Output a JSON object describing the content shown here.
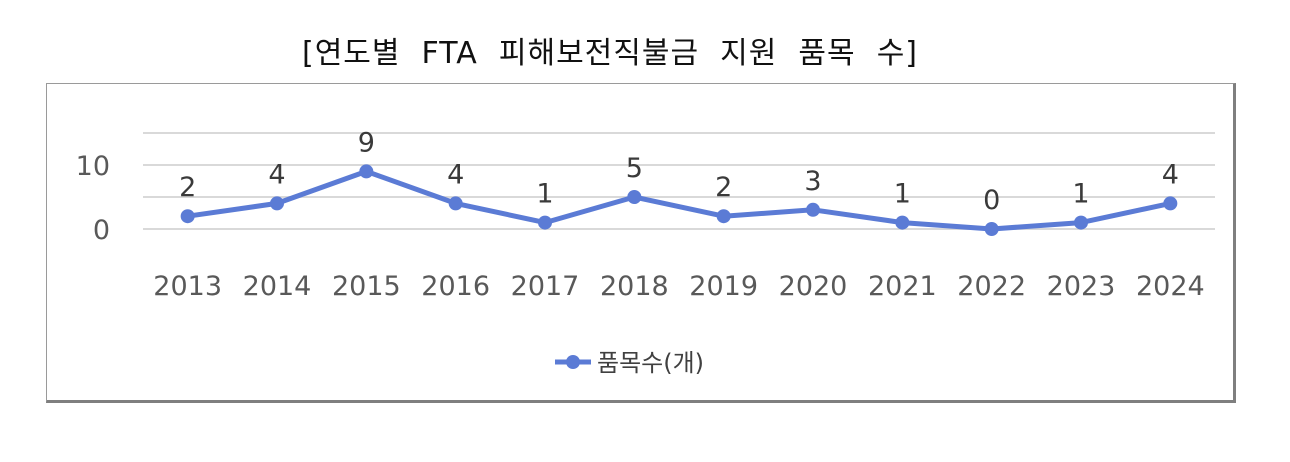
{
  "title": "[연도별  FTA  피해보전직불금  지원  품목  수]",
  "chart_data": {
    "type": "line",
    "title": "[연도별  FTA  피해보전직불금  지원  품목  수]",
    "xlabel": "",
    "ylabel": "",
    "categories": [
      "2013",
      "2014",
      "2015",
      "2016",
      "2017",
      "2018",
      "2019",
      "2020",
      "2021",
      "2022",
      "2023",
      "2024"
    ],
    "series": [
      {
        "name": "품목수(개)",
        "values": [
          2,
          4,
          9,
          4,
          1,
          5,
          2,
          3,
          1,
          0,
          1,
          4
        ],
        "color": "#5b7bd5"
      }
    ],
    "y_ticks": [
      "0",
      "10"
    ],
    "ylim": [
      0,
      15
    ],
    "grid": true,
    "data_labels": true,
    "legend_position": "bottom"
  }
}
